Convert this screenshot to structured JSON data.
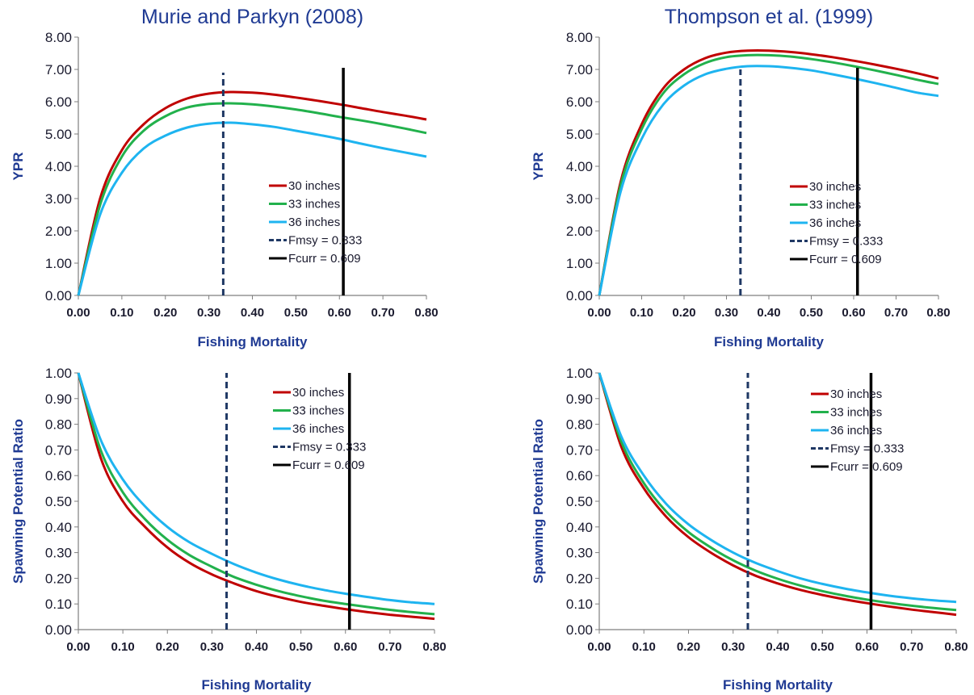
{
  "series_colors": {
    "30 inches": "#c00000",
    "33 inches": "#22b14c",
    "36 inches": "#1eb4f0",
    "Fmsy": "#1f3864",
    "Fcurr": "#000000"
  },
  "chart_data": [
    {
      "type": "line",
      "title": "Murie and Parkyn (2008)",
      "xlabel": "Fishing Mortality",
      "ylabel": "YPR",
      "xlim": [
        0,
        0.8
      ],
      "ylim": [
        0,
        8
      ],
      "xticks": [
        "0.00",
        "0.10",
        "0.20",
        "0.30",
        "0.40",
        "0.50",
        "0.60",
        "0.70",
        "0.80"
      ],
      "yticks": [
        "0.00",
        "1.00",
        "2.00",
        "3.00",
        "4.00",
        "5.00",
        "6.00",
        "7.00",
        "8.00"
      ],
      "x": [
        0,
        0.05,
        0.1,
        0.15,
        0.2,
        0.25,
        0.3,
        0.35,
        0.4,
        0.45,
        0.5,
        0.55,
        0.6,
        0.65,
        0.7,
        0.75,
        0.8
      ],
      "series": [
        {
          "name": "30 inches",
          "values": [
            0,
            3.0,
            4.5,
            5.3,
            5.8,
            6.1,
            6.25,
            6.3,
            6.28,
            6.22,
            6.13,
            6.03,
            5.92,
            5.8,
            5.68,
            5.57,
            5.45
          ]
        },
        {
          "name": "33 inches",
          "values": [
            0,
            2.8,
            4.3,
            5.1,
            5.55,
            5.82,
            5.93,
            5.95,
            5.92,
            5.85,
            5.76,
            5.65,
            5.53,
            5.42,
            5.3,
            5.17,
            5.03
          ]
        },
        {
          "name": "36 inches",
          "values": [
            0,
            2.5,
            3.8,
            4.55,
            4.95,
            5.2,
            5.32,
            5.35,
            5.3,
            5.22,
            5.1,
            4.98,
            4.85,
            4.7,
            4.56,
            4.43,
            4.3
          ]
        }
      ],
      "vlines": [
        {
          "name": "Fmsy = 0.333",
          "x": 0.333,
          "ymax": 6.9,
          "style": "dashed"
        },
        {
          "name": "Fcurr = 0.609",
          "x": 0.609,
          "ymax": 7.05,
          "style": "solid"
        }
      ],
      "legend": [
        "30 inches",
        "33 inches",
        "36 inches",
        "Fmsy = 0.333",
        "Fcurr = 0.609"
      ],
      "legend_position": "center-right"
    },
    {
      "type": "line",
      "title": "Thompson et al. (1999)",
      "xlabel": "Fishing Mortality",
      "ylabel": "YPR",
      "xlim": [
        0,
        0.8
      ],
      "ylim": [
        0,
        8
      ],
      "xticks": [
        "0.00",
        "0.10",
        "0.20",
        "0.30",
        "0.40",
        "0.50",
        "0.60",
        "0.70",
        "0.80"
      ],
      "yticks": [
        "0.00",
        "1.00",
        "2.00",
        "3.00",
        "4.00",
        "5.00",
        "6.00",
        "7.00",
        "8.00"
      ],
      "x": [
        0,
        0.05,
        0.1,
        0.15,
        0.2,
        0.25,
        0.3,
        0.35,
        0.4,
        0.45,
        0.5,
        0.55,
        0.6,
        0.65,
        0.7,
        0.75,
        0.8
      ],
      "series": [
        {
          "name": "30 inches",
          "values": [
            0,
            3.5,
            5.3,
            6.4,
            7.0,
            7.35,
            7.52,
            7.58,
            7.58,
            7.54,
            7.47,
            7.38,
            7.27,
            7.15,
            7.02,
            6.88,
            6.72
          ]
        },
        {
          "name": "33 inches",
          "values": [
            0,
            3.4,
            5.15,
            6.25,
            6.85,
            7.2,
            7.38,
            7.44,
            7.44,
            7.4,
            7.32,
            7.22,
            7.1,
            6.97,
            6.83,
            6.68,
            6.55
          ]
        },
        {
          "name": "36 inches",
          "values": [
            0,
            3.2,
            4.85,
            5.9,
            6.5,
            6.85,
            7.02,
            7.1,
            7.1,
            7.05,
            6.97,
            6.85,
            6.72,
            6.58,
            6.43,
            6.28,
            6.18
          ]
        }
      ],
      "vlines": [
        {
          "name": "Fmsy = 0.333",
          "x": 0.333,
          "ymax": 7.0,
          "style": "dashed"
        },
        {
          "name": "Fcurr = 0.609",
          "x": 0.609,
          "ymax": 7.05,
          "style": "solid"
        }
      ],
      "legend": [
        "30 inches",
        "33 inches",
        "36 inches",
        "Fmsy = 0.333",
        "Fcurr = 0.609"
      ],
      "legend_position": "center-right"
    },
    {
      "type": "line",
      "title": "",
      "xlabel": "Fishing Mortality",
      "ylabel": "Spawning Potential Ratio",
      "xlim": [
        0,
        0.8
      ],
      "ylim": [
        0,
        1
      ],
      "xticks": [
        "0.00",
        "0.10",
        "0.20",
        "0.30",
        "0.40",
        "0.50",
        "0.60",
        "0.70",
        "0.80"
      ],
      "yticks": [
        "0.00",
        "0.10",
        "0.20",
        "0.30",
        "0.40",
        "0.50",
        "0.60",
        "0.70",
        "0.80",
        "0.90",
        "1.00"
      ],
      "x": [
        0,
        0.05,
        0.1,
        0.15,
        0.2,
        0.25,
        0.3,
        0.35,
        0.4,
        0.45,
        0.5,
        0.55,
        0.6,
        0.65,
        0.7,
        0.75,
        0.8
      ],
      "series": [
        {
          "name": "30 inches",
          "values": [
            1.0,
            0.67,
            0.5,
            0.4,
            0.32,
            0.26,
            0.215,
            0.18,
            0.15,
            0.127,
            0.108,
            0.093,
            0.08,
            0.068,
            0.058,
            0.05,
            0.042
          ]
        },
        {
          "name": "33 inches",
          "values": [
            1.0,
            0.7,
            0.535,
            0.43,
            0.35,
            0.29,
            0.245,
            0.205,
            0.175,
            0.15,
            0.13,
            0.113,
            0.1,
            0.088,
            0.077,
            0.068,
            0.06
          ]
        },
        {
          "name": "36 inches",
          "values": [
            1.0,
            0.74,
            0.585,
            0.48,
            0.4,
            0.34,
            0.295,
            0.255,
            0.222,
            0.195,
            0.173,
            0.155,
            0.14,
            0.127,
            0.115,
            0.106,
            0.1
          ]
        }
      ],
      "vlines": [
        {
          "name": "Fmsy = 0.333",
          "x": 0.333,
          "ymax": 1.0,
          "style": "dashed"
        },
        {
          "name": "Fcurr = 0.609",
          "x": 0.609,
          "ymax": 1.0,
          "style": "solid"
        }
      ],
      "legend": [
        "30 inches",
        "33 inches",
        "36 inches",
        "Fmsy = 0.333",
        "Fcurr = 0.609"
      ],
      "legend_position": "top-right"
    },
    {
      "type": "line",
      "title": "",
      "xlabel": "Fishing Mortality",
      "ylabel": "Spawning Potential Ratio",
      "xlim": [
        0,
        0.8
      ],
      "ylim": [
        0,
        1
      ],
      "xticks": [
        "0.00",
        "0.10",
        "0.20",
        "0.30",
        "0.40",
        "0.50",
        "0.60",
        "0.70",
        "0.80"
      ],
      "yticks": [
        "0.00",
        "0.10",
        "0.20",
        "0.30",
        "0.40",
        "0.50",
        "0.60",
        "0.70",
        "0.80",
        "0.90",
        "1.00"
      ],
      "x": [
        0,
        0.05,
        0.1,
        0.15,
        0.2,
        0.25,
        0.3,
        0.35,
        0.4,
        0.45,
        0.5,
        0.55,
        0.6,
        0.65,
        0.7,
        0.75,
        0.8
      ],
      "series": [
        {
          "name": "30 inches",
          "values": [
            1.0,
            0.71,
            0.55,
            0.44,
            0.36,
            0.3,
            0.25,
            0.21,
            0.18,
            0.155,
            0.135,
            0.118,
            0.103,
            0.09,
            0.078,
            0.068,
            0.058
          ]
        },
        {
          "name": "33 inches",
          "values": [
            1.0,
            0.73,
            0.57,
            0.46,
            0.38,
            0.32,
            0.27,
            0.23,
            0.198,
            0.172,
            0.15,
            0.132,
            0.117,
            0.104,
            0.093,
            0.084,
            0.076
          ]
        },
        {
          "name": "36 inches",
          "values": [
            1.0,
            0.75,
            0.6,
            0.49,
            0.41,
            0.35,
            0.3,
            0.26,
            0.228,
            0.2,
            0.178,
            0.16,
            0.145,
            0.132,
            0.122,
            0.114,
            0.108
          ]
        }
      ],
      "vlines": [
        {
          "name": "Fmsy = 0.333",
          "x": 0.333,
          "ymax": 1.0,
          "style": "dashed"
        },
        {
          "name": "Fcurr = 0.609",
          "x": 0.609,
          "ymax": 1.0,
          "style": "solid"
        }
      ],
      "legend": [
        "30 inches",
        "33 inches",
        "36 inches",
        "Fmsy = 0.333",
        "Fcurr = 0.609"
      ],
      "legend_position": "top-right"
    }
  ]
}
